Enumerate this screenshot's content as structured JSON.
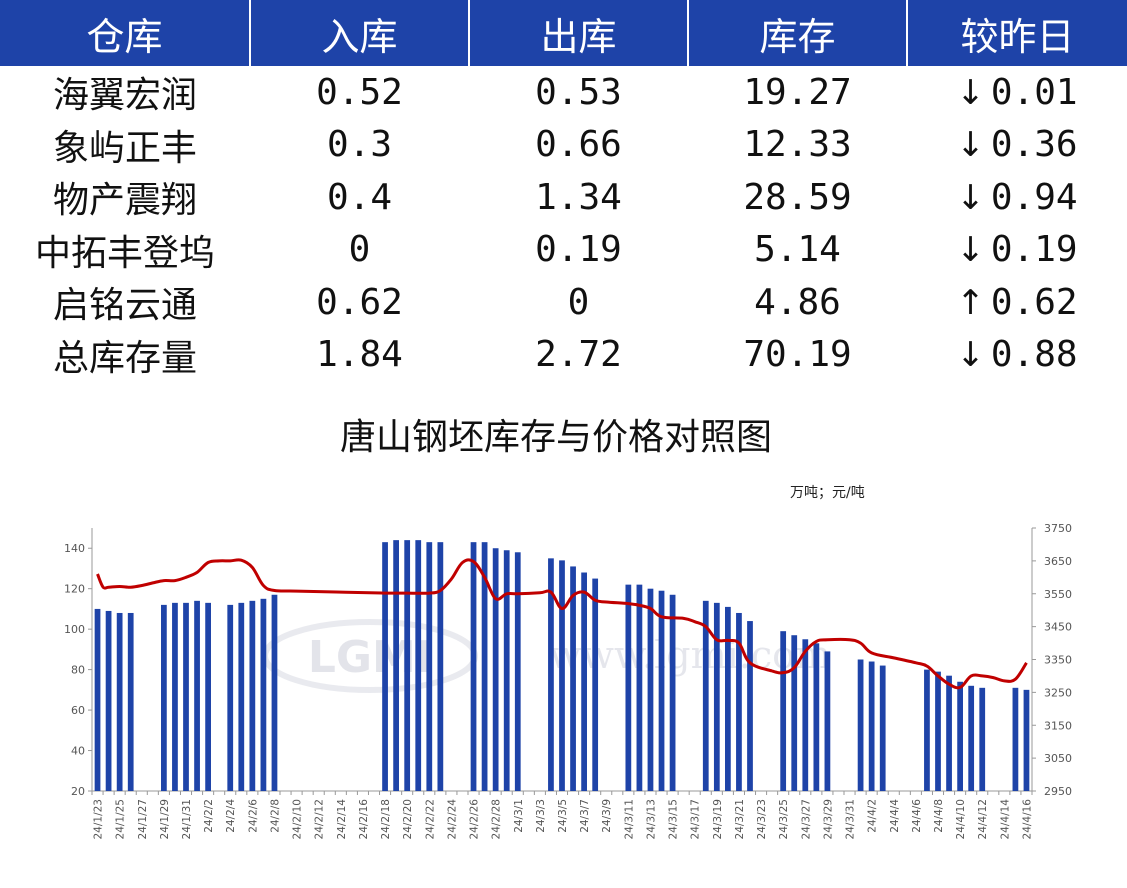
{
  "table": {
    "headers": [
      "仓库",
      "入库",
      "出库",
      "库存",
      "较昨日"
    ],
    "rows": [
      {
        "name": "海翼宏润",
        "in": "0.52",
        "out": "0.53",
        "stock": "19.27",
        "dir": "down",
        "arrow": "↓",
        "change": "0.01"
      },
      {
        "name": "象屿正丰",
        "in": "0.3",
        "out": "0.66",
        "stock": "12.33",
        "dir": "down",
        "arrow": "↓",
        "change": "0.36"
      },
      {
        "name": "物产震翔",
        "in": "0.4",
        "out": "1.34",
        "stock": "28.59",
        "dir": "down",
        "arrow": "↓",
        "change": "0.94"
      },
      {
        "name": "中拓丰登坞",
        "in": "0",
        "out": "0.19",
        "stock": "5.14",
        "dir": "down",
        "arrow": "↓",
        "change": "0.19"
      },
      {
        "name": "启铭云通",
        "in": "0.62",
        "out": "0",
        "stock": "4.86",
        "dir": "up",
        "arrow": "↑",
        "change": "0.62"
      },
      {
        "name": "总库存量",
        "in": "1.84",
        "out": "2.72",
        "stock": "70.19",
        "dir": "down",
        "arrow": "↓",
        "change": "0.88"
      }
    ]
  },
  "colors": {
    "header_bg": "#1e43a8",
    "bar": "#1e43a8",
    "line": "#c00000",
    "down": "#10a040",
    "up": "#e60000"
  },
  "watermark": {
    "logo": "LGMI",
    "url": "www.lgmi.com"
  },
  "chart_data": {
    "type": "bar",
    "title": "唐山钢坯库存与价格对照图",
    "unit_label": "万吨；元/吨",
    "x_start": "2024-01-23",
    "x_end": "2024-04-16",
    "x_tick_labels": [
      "24/1/23",
      "24/1/25",
      "24/1/27",
      "24/1/29",
      "24/1/31",
      "24/2/2",
      "24/2/4",
      "24/2/6",
      "24/2/8",
      "24/2/10",
      "24/2/12",
      "24/2/14",
      "24/2/16",
      "24/2/18",
      "24/2/20",
      "24/2/22",
      "24/2/24",
      "24/2/26",
      "24/2/28",
      "24/3/1",
      "24/3/3",
      "24/3/5",
      "24/3/7",
      "24/3/9",
      "24/3/11",
      "24/3/13",
      "24/3/15",
      "24/3/17",
      "24/3/19",
      "24/3/21",
      "24/3/23",
      "24/3/25",
      "24/3/27",
      "24/3/29",
      "24/3/31",
      "24/4/2",
      "24/4/4",
      "24/4/6",
      "24/4/8",
      "24/4/10",
      "24/4/12",
      "24/4/14",
      "24/4/16"
    ],
    "y_left": {
      "min": 20,
      "max": 150,
      "ticks": [
        20,
        40,
        60,
        80,
        100,
        120,
        140
      ]
    },
    "y_right": {
      "min": 2950,
      "max": 3750,
      "ticks": [
        2950,
        3050,
        3150,
        3250,
        3350,
        3450,
        3550,
        3650,
        3750
      ]
    },
    "grid": false,
    "series": [
      {
        "axis": "left",
        "kind": "bar",
        "points": [
          [
            "2024-01-23",
            110
          ],
          [
            "2024-01-24",
            109
          ],
          [
            "2024-01-25",
            108
          ],
          [
            "2024-01-26",
            108
          ],
          [
            "2024-01-29",
            112
          ],
          [
            "2024-01-30",
            113
          ],
          [
            "2024-01-31",
            113
          ],
          [
            "2024-02-01",
            114
          ],
          [
            "2024-02-02",
            113
          ],
          [
            "2024-02-04",
            112
          ],
          [
            "2024-02-05",
            113
          ],
          [
            "2024-02-06",
            114
          ],
          [
            "2024-02-07",
            115
          ],
          [
            "2024-02-08",
            117
          ],
          [
            "2024-02-18",
            143
          ],
          [
            "2024-02-19",
            144
          ],
          [
            "2024-02-20",
            144
          ],
          [
            "2024-02-21",
            144
          ],
          [
            "2024-02-22",
            143
          ],
          [
            "2024-02-23",
            143
          ],
          [
            "2024-02-26",
            143
          ],
          [
            "2024-02-27",
            143
          ],
          [
            "2024-02-28",
            140
          ],
          [
            "2024-02-29",
            139
          ],
          [
            "2024-03-01",
            138
          ],
          [
            "2024-03-04",
            135
          ],
          [
            "2024-03-05",
            134
          ],
          [
            "2024-03-06",
            131
          ],
          [
            "2024-03-07",
            128
          ],
          [
            "2024-03-08",
            125
          ],
          [
            "2024-03-11",
            122
          ],
          [
            "2024-03-12",
            122
          ],
          [
            "2024-03-13",
            120
          ],
          [
            "2024-03-14",
            119
          ],
          [
            "2024-03-15",
            117
          ],
          [
            "2024-03-18",
            114
          ],
          [
            "2024-03-19",
            113
          ],
          [
            "2024-03-20",
            111
          ],
          [
            "2024-03-21",
            108
          ],
          [
            "2024-03-22",
            104
          ],
          [
            "2024-03-25",
            99
          ],
          [
            "2024-03-26",
            97
          ],
          [
            "2024-03-27",
            95
          ],
          [
            "2024-03-28",
            93
          ],
          [
            "2024-03-29",
            89
          ],
          [
            "2024-04-01",
            85
          ],
          [
            "2024-04-02",
            84
          ],
          [
            "2024-04-03",
            82
          ],
          [
            "2024-04-07",
            80
          ],
          [
            "2024-04-08",
            79
          ],
          [
            "2024-04-09",
            77
          ],
          [
            "2024-04-10",
            74
          ],
          [
            "2024-04-11",
            72
          ],
          [
            "2024-04-12",
            71
          ],
          [
            "2024-04-15",
            71
          ],
          [
            "2024-04-16",
            70
          ]
        ]
      },
      {
        "axis": "right",
        "kind": "line",
        "points": [
          [
            "2024-01-23",
            3610
          ],
          [
            "2024-01-23T12",
            3570
          ],
          [
            "2024-01-24",
            3570
          ],
          [
            "2024-01-25",
            3572
          ],
          [
            "2024-01-26",
            3570
          ],
          [
            "2024-01-27",
            3575
          ],
          [
            "2024-01-28",
            3583
          ],
          [
            "2024-01-29",
            3590
          ],
          [
            "2024-01-30",
            3590
          ],
          [
            "2024-01-31",
            3600
          ],
          [
            "2024-02-01",
            3615
          ],
          [
            "2024-02-02",
            3645
          ],
          [
            "2024-02-03",
            3650
          ],
          [
            "2024-02-04",
            3650
          ],
          [
            "2024-02-05",
            3652
          ],
          [
            "2024-02-06",
            3630
          ],
          [
            "2024-02-07",
            3575
          ],
          [
            "2024-02-08",
            3560
          ],
          [
            "2024-02-10",
            3558
          ],
          [
            "2024-02-14",
            3555
          ],
          [
            "2024-02-18",
            3552
          ],
          [
            "2024-02-20",
            3552
          ],
          [
            "2024-02-22",
            3552
          ],
          [
            "2024-02-23",
            3560
          ],
          [
            "2024-02-24",
            3595
          ],
          [
            "2024-02-25",
            3645
          ],
          [
            "2024-02-26",
            3648
          ],
          [
            "2024-02-27",
            3600
          ],
          [
            "2024-02-28",
            3535
          ],
          [
            "2024-02-29",
            3550
          ],
          [
            "2024-03-01",
            3550
          ],
          [
            "2024-03-03",
            3553
          ],
          [
            "2024-03-04",
            3555
          ],
          [
            "2024-03-05",
            3505
          ],
          [
            "2024-03-06",
            3545
          ],
          [
            "2024-03-07",
            3555
          ],
          [
            "2024-03-08",
            3530
          ],
          [
            "2024-03-09",
            3525
          ],
          [
            "2024-03-11",
            3520
          ],
          [
            "2024-03-12",
            3515
          ],
          [
            "2024-03-13",
            3505
          ],
          [
            "2024-03-14",
            3480
          ],
          [
            "2024-03-16",
            3475
          ],
          [
            "2024-03-17",
            3465
          ],
          [
            "2024-03-18",
            3450
          ],
          [
            "2024-03-19",
            3410
          ],
          [
            "2024-03-20",
            3408
          ],
          [
            "2024-03-21",
            3400
          ],
          [
            "2024-03-22",
            3340
          ],
          [
            "2024-03-24",
            3315
          ],
          [
            "2024-03-25",
            3310
          ],
          [
            "2024-03-26",
            3325
          ],
          [
            "2024-03-27",
            3375
          ],
          [
            "2024-03-28",
            3405
          ],
          [
            "2024-03-29",
            3410
          ],
          [
            "2024-03-31",
            3410
          ],
          [
            "2024-04-01",
            3400
          ],
          [
            "2024-04-02",
            3370
          ],
          [
            "2024-04-04",
            3355
          ],
          [
            "2024-04-06",
            3340
          ],
          [
            "2024-04-07",
            3330
          ],
          [
            "2024-04-08",
            3300
          ],
          [
            "2024-04-09",
            3275
          ],
          [
            "2024-04-10",
            3265
          ],
          [
            "2024-04-11",
            3300
          ],
          [
            "2024-04-12",
            3300
          ],
          [
            "2024-04-13",
            3295
          ],
          [
            "2024-04-14",
            3285
          ],
          [
            "2024-04-15",
            3290
          ],
          [
            "2024-04-16",
            3340
          ]
        ]
      }
    ]
  }
}
